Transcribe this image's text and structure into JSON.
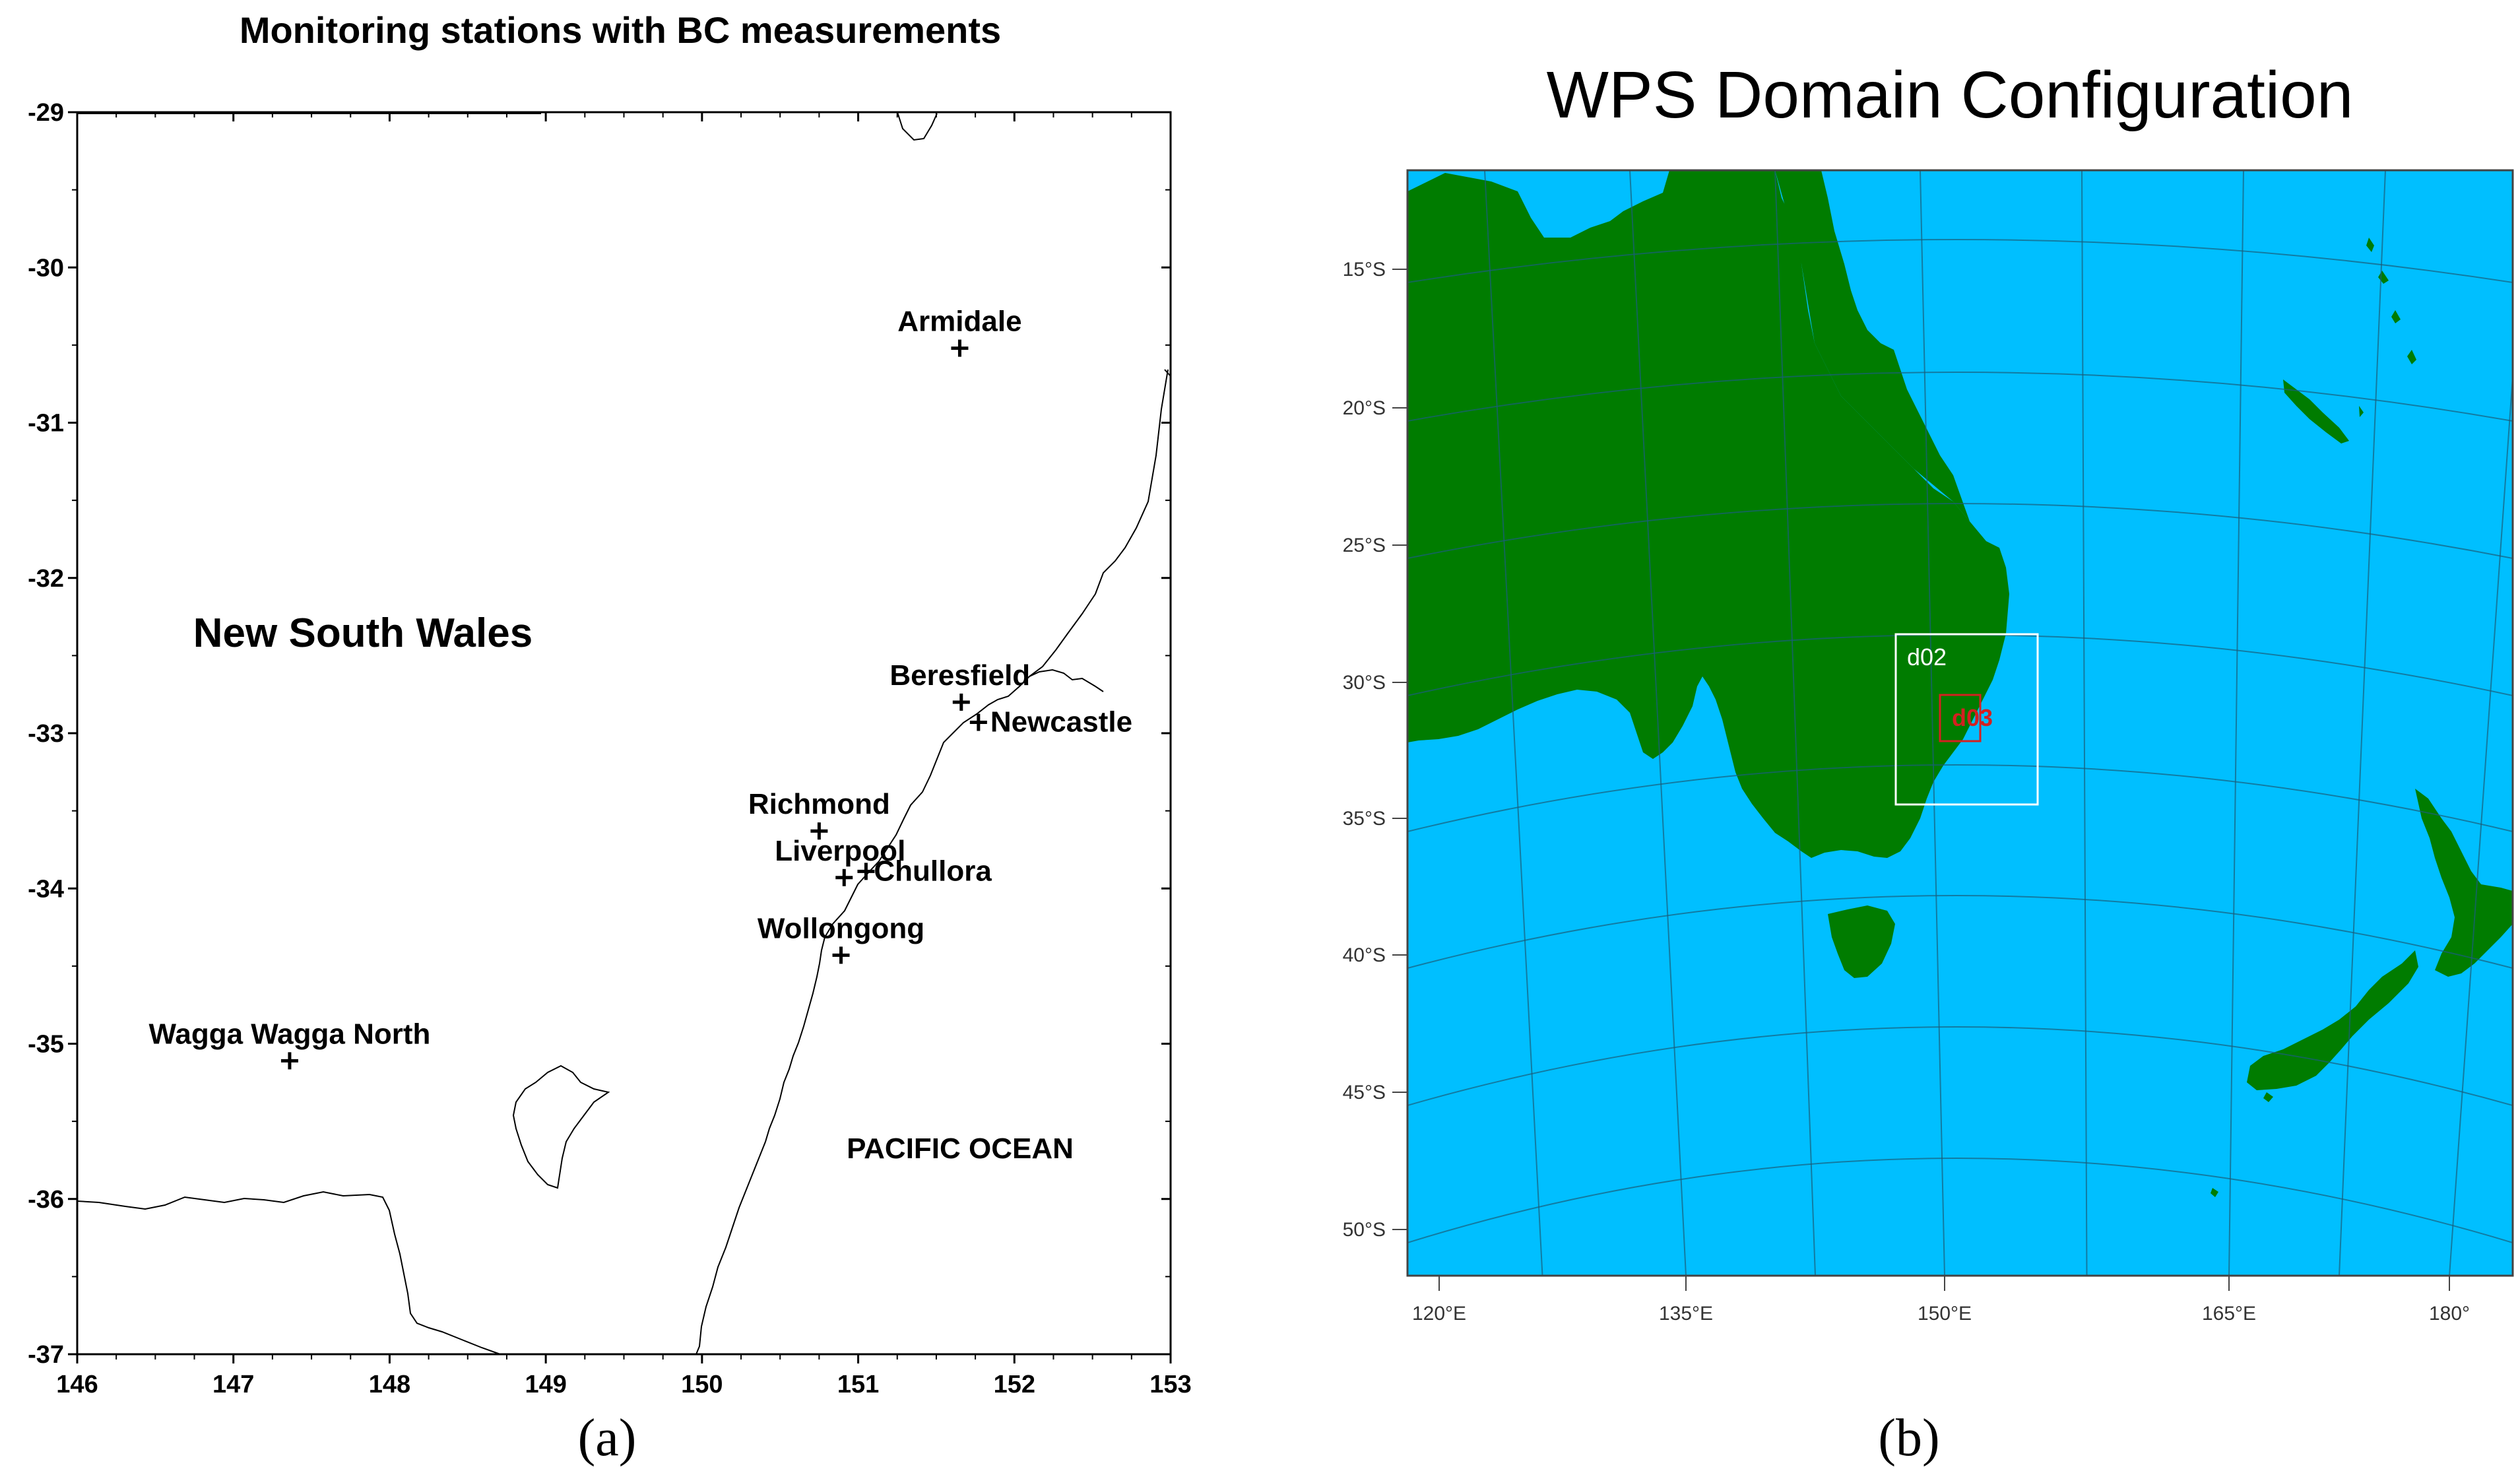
{
  "panel_a": {
    "title": "Monitoring stations with BC measurements",
    "caption": "(a)",
    "region_label": "New South Wales",
    "ocean_label": "PACIFIC OCEAN",
    "x_ticks": [
      "146",
      "147",
      "148",
      "149",
      "150",
      "151",
      "152",
      "153"
    ],
    "y_ticks": [
      "-29",
      "-30",
      "-31",
      "-32",
      "-33",
      "-34",
      "-35",
      "-36",
      "-37"
    ],
    "stations": [
      {
        "name": "Armidale",
        "lon": 151.65,
        "lat": -30.52
      },
      {
        "name": "Beresfield",
        "lon": 151.66,
        "lat": -32.8
      },
      {
        "name": "Newcastle",
        "lon": 151.77,
        "lat": -32.93
      },
      {
        "name": "Richmond",
        "lon": 150.75,
        "lat": -33.63
      },
      {
        "name": "Liverpool",
        "lon": 150.91,
        "lat": -33.93
      },
      {
        "name": "Chullora",
        "lon": 151.05,
        "lat": -33.89
      },
      {
        "name": "Wollongong",
        "lon": 150.89,
        "lat": -34.43
      },
      {
        "name": "Wagga Wagga North",
        "lon": 147.36,
        "lat": -35.11
      }
    ],
    "colors": {
      "line": "#000000",
      "background": "#ffffff"
    }
  },
  "panel_b": {
    "title": "WPS Domain Configuration",
    "caption": "(b)",
    "lat_labels": [
      "15°S",
      "20°S",
      "25°S",
      "30°S",
      "35°S",
      "40°S",
      "45°S",
      "50°S"
    ],
    "lon_labels": [
      "120°E",
      "135°E",
      "150°E",
      "165°E",
      "180°"
    ],
    "domains": [
      {
        "label": "d02",
        "color": "#ffffff"
      },
      {
        "label": "d03",
        "color": "#d42020"
      }
    ],
    "colors": {
      "ocean": "#00bfff",
      "land": "#007c00",
      "grid": "#1a5e7a"
    }
  }
}
